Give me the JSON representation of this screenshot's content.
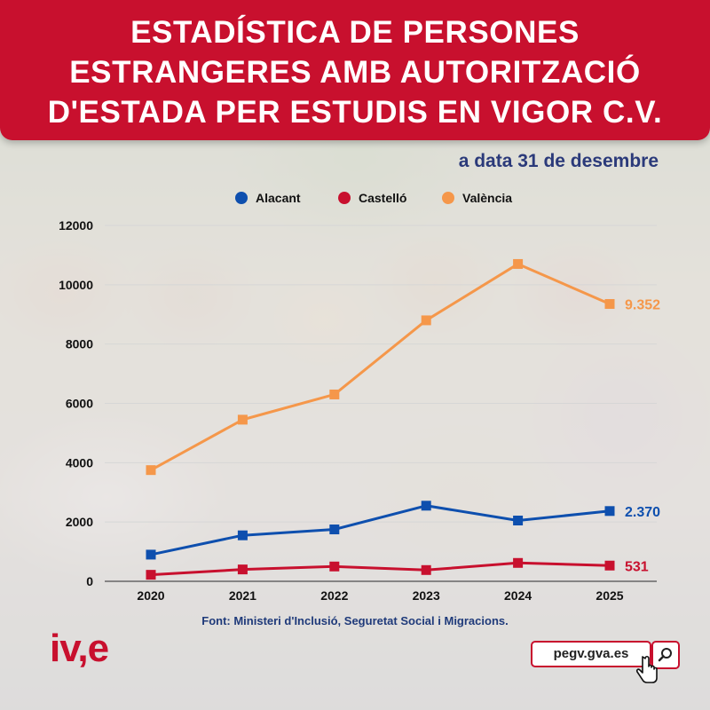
{
  "title": "ESTADÍSTICA DE PERSONES ESTRANGERES AMB AUTORITZACIÓ D'ESTADA PER ESTUDIS EN VIGOR C.V.",
  "subtitle": "a data 31 de desembre",
  "source": "Font: Ministeri d'Inclusió, Seguretat Social i Migracions.",
  "logo": "iv,e",
  "url": "pegv.gva.es",
  "icons": {
    "search": "search-icon",
    "cursor": "hand-pointer-icon"
  },
  "colors": {
    "brand": "#c8102e",
    "alacant": "#0e4fae",
    "castello": "#c8102e",
    "valencia": "#f5974a"
  },
  "chart_data": {
    "type": "line",
    "x": [
      "2020",
      "2021",
      "2022",
      "2023",
      "2024",
      "2025"
    ],
    "ylim": [
      0,
      12000
    ],
    "yticks": [
      "0",
      "2000",
      "4000",
      "6000",
      "8000",
      "10000",
      "12000"
    ],
    "grid": true,
    "legend_position": "top",
    "series": [
      {
        "name": "Alacant",
        "color": "#0e4fae",
        "values": [
          900,
          1550,
          1750,
          2550,
          2050,
          2370
        ],
        "end_label": "2.370"
      },
      {
        "name": "Castelló",
        "color": "#c8102e",
        "values": [
          220,
          400,
          500,
          380,
          620,
          531
        ],
        "end_label": "531"
      },
      {
        "name": "València",
        "color": "#f5974a",
        "values": [
          3750,
          5450,
          6300,
          8800,
          10700,
          9352
        ],
        "end_label": "9.352"
      }
    ]
  }
}
